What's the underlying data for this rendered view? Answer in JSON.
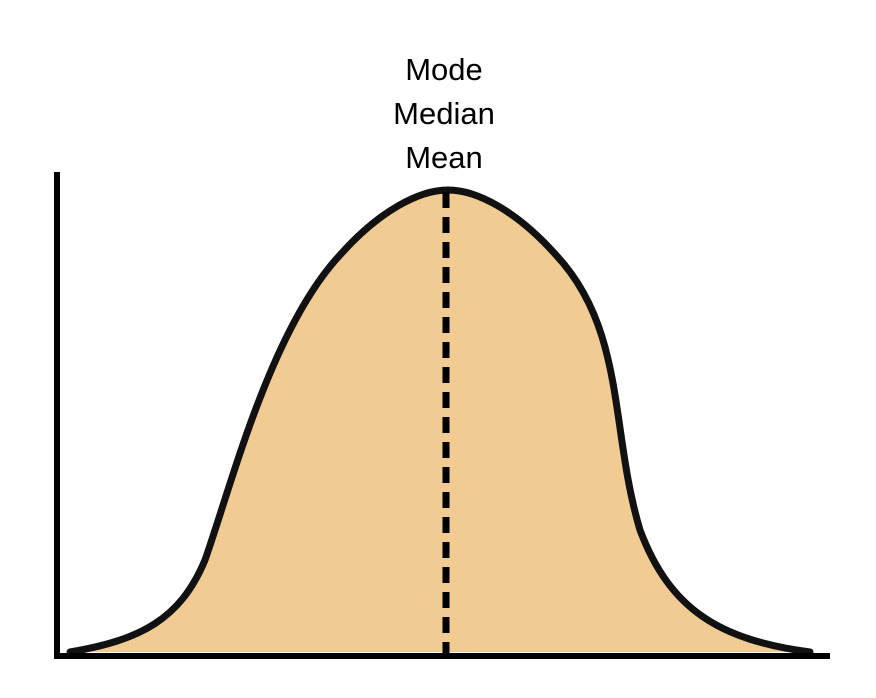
{
  "labels": {
    "mode": "Mode",
    "median": "Median",
    "mean": "Mean"
  },
  "colors": {
    "fill": "#F2CB92",
    "curve": "#111111",
    "axes": "#000000",
    "center_line": "#000000",
    "background": "#FFFFFF"
  }
}
